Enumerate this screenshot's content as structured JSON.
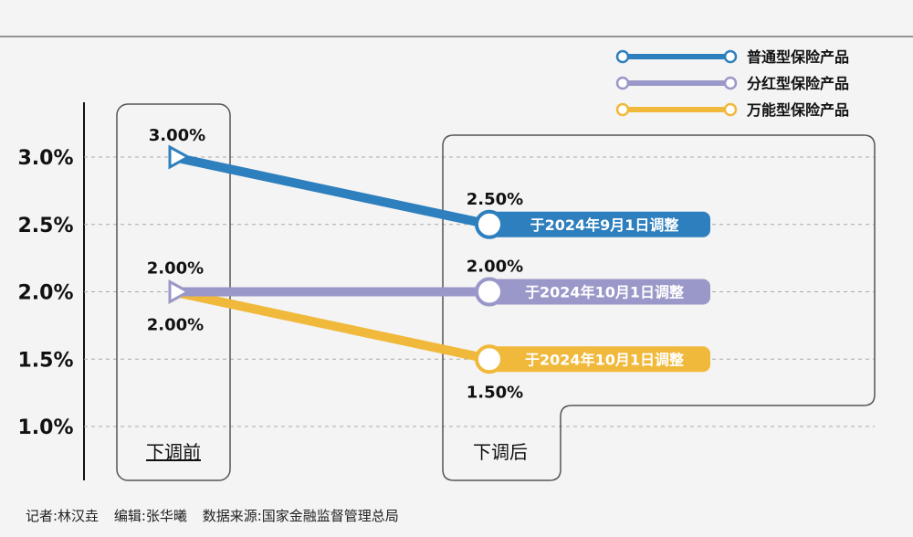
{
  "chart_data": {
    "type": "line",
    "categories": [
      "下调前",
      "下调后"
    ],
    "yticks": [
      "3.0%",
      "2.5%",
      "2.0%",
      "1.5%",
      "1.0%"
    ],
    "ytick_values": [
      3.0,
      2.5,
      2.0,
      1.5,
      1.0
    ],
    "ylim": [
      0.8,
      3.3
    ],
    "grid": "horizontal-dashed",
    "legend_position": "top-right",
    "series": [
      {
        "name": "普通型保险产品",
        "color": "#2e7fbe",
        "values": [
          3.0,
          2.5
        ],
        "labels": [
          "3.00%",
          "2.50%"
        ],
        "note": "于2024年9月1日调整"
      },
      {
        "name": "分红型保险产品",
        "color": "#9a98c8",
        "values": [
          2.0,
          2.0
        ],
        "labels": [
          "2.00%",
          "2.00%"
        ],
        "note": "于2024年10月1日调整"
      },
      {
        "name": "万能型保险产品",
        "color": "#f0b93c",
        "values": [
          2.0,
          1.5
        ],
        "labels": [
          "2.00%",
          "1.50%"
        ],
        "note": "于2024年10月1日调整"
      }
    ]
  },
  "credits": {
    "reporter": "记者:林汉垚",
    "editor": "编辑:张华曦",
    "source": "数据来源:国家金融监督管理总局"
  }
}
